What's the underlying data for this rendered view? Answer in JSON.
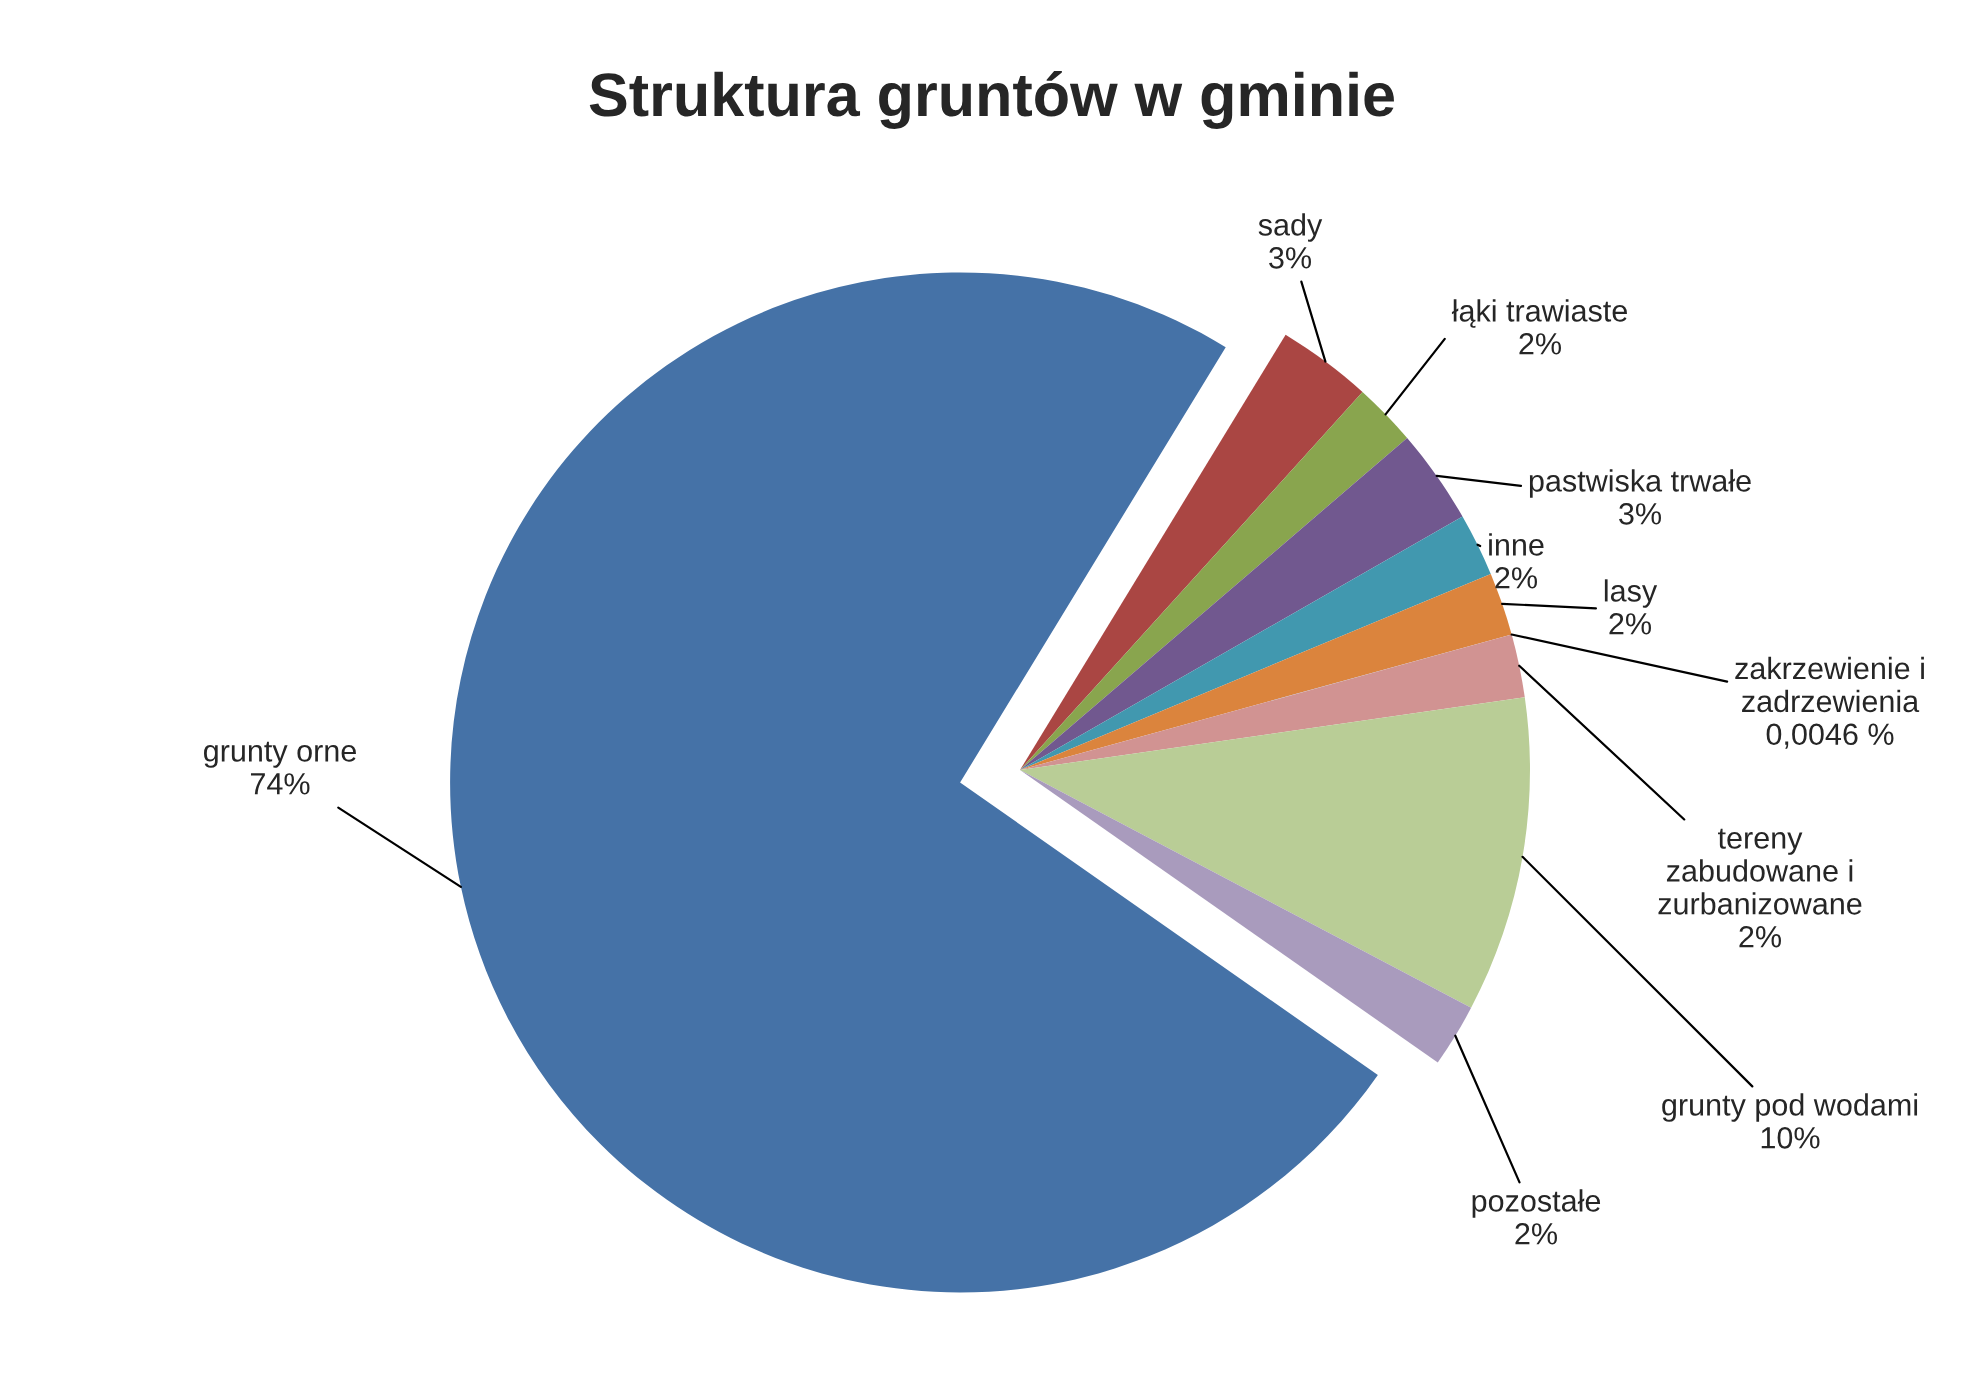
{
  "chart_data": {
    "type": "pie",
    "title": "Struktura gruntów w gminie",
    "categories": [
      "grunty orne",
      "sady",
      "łąki trawiaste",
      "pastwiska trwałe",
      "inne",
      "lasy",
      "zakrzewienie i zadrzewienia",
      "tereny zabudowane i zurbanizowane",
      "grunty pod wodami",
      "pozostałe"
    ],
    "values": [
      74,
      3,
      2,
      3,
      2,
      2,
      0.0046,
      2,
      10,
      2
    ],
    "value_labels": [
      "74%",
      "3%",
      "2%",
      "3%",
      "2%",
      "2%",
      "0,0046 %",
      "2%",
      "10%",
      "2%"
    ],
    "colors": [
      "#4572a7",
      "#aa4643",
      "#89a54e",
      "#71588f",
      "#4198af",
      "#db843d",
      "#93a9cf",
      "#d19392",
      "#b9cd96",
      "#a99bbd"
    ],
    "legend": false
  }
}
